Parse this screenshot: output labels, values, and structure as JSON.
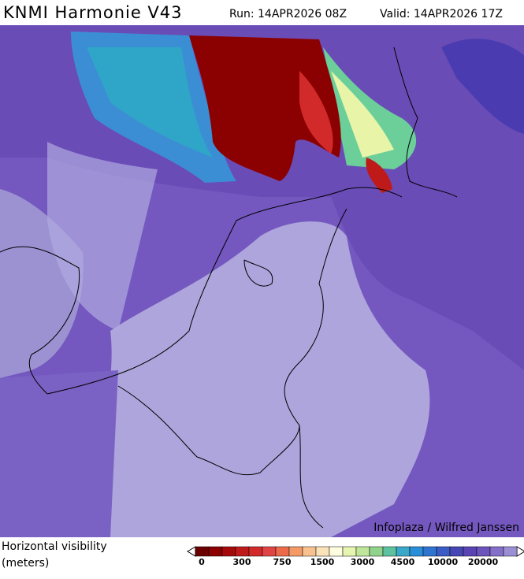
{
  "header": {
    "title": "KNMI Harmonie V43",
    "run": "Run: 14APR2026 08Z",
    "valid": "Valid: 14APR2026 17Z"
  },
  "map": {
    "credit": "Infoplaza / Wilfred Janssen"
  },
  "legend": {
    "label_line1": "Horizontal visibility",
    "label_line2": "(meters)",
    "colors": [
      "#6b0000",
      "#8b0000",
      "#a50a0a",
      "#be1a1a",
      "#d22a2a",
      "#e04444",
      "#ec6a4a",
      "#f49a66",
      "#f8c290",
      "#fae3b8",
      "#fffde0",
      "#e6f5b0",
      "#bfe69a",
      "#8fd48a",
      "#5ec2a0",
      "#3aa8c8",
      "#2a8ed8",
      "#2f74d0",
      "#3a5cc4",
      "#4646b4",
      "#5a44b4",
      "#6c54bc",
      "#8470c8",
      "#9c8ed4"
    ],
    "ticks": [
      0,
      300,
      750,
      1500,
      3000,
      4500,
      10000,
      20000
    ]
  }
}
